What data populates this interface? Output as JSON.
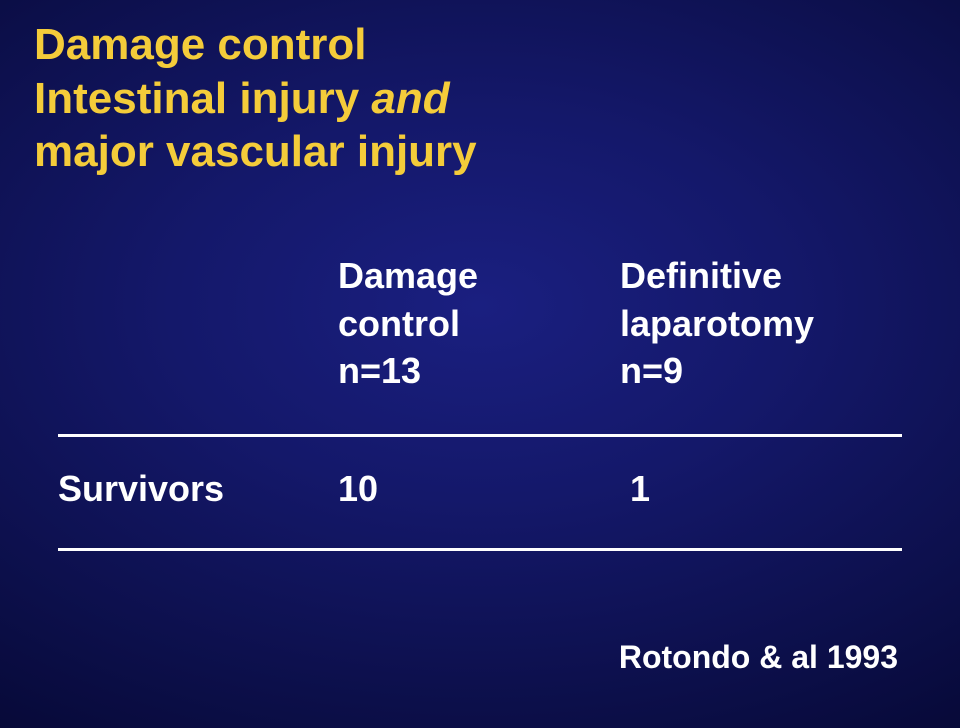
{
  "title": {
    "line1": "Damage control",
    "line2_part1": "Intestinal injury",
    "line2_italic": " and",
    "line3": "major vascular injury",
    "color": "#f4cc3a",
    "fontsize": 44
  },
  "table": {
    "columns": [
      {
        "label": "Damage",
        "sub1": "control",
        "sub2": "n=13"
      },
      {
        "label": "Definitive",
        "sub1": "laparotomy",
        "sub2": "n=9"
      }
    ],
    "row": {
      "label": "Survivors",
      "values": [
        "10",
        "1"
      ]
    },
    "rule_color": "#ffffff",
    "text_color": "#ffffff",
    "fontsize": 36
  },
  "citation": "Rotondo & al 1993",
  "background": {
    "center": "#1a1f80",
    "edge": "#000018"
  }
}
